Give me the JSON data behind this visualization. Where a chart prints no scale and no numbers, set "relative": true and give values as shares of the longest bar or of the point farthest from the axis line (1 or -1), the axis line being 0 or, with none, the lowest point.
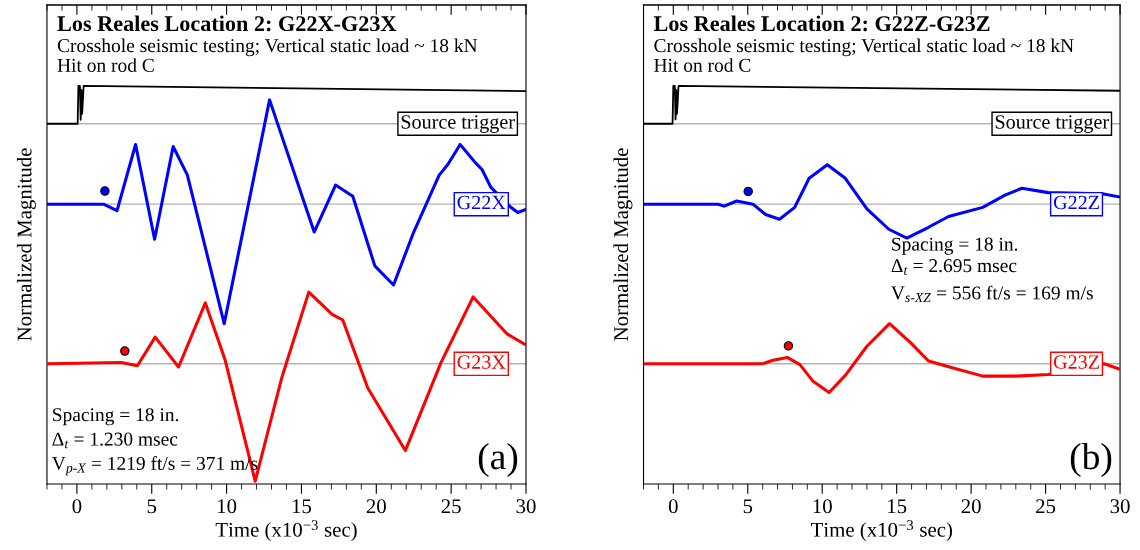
{
  "chart_data": [
    {
      "type": "line",
      "title": "Los Reales Location 2: G22X-G23X",
      "subtitle": "Crosshole seismic testing; Vertical static load ~ 18 kN\nHit on rod C",
      "xlabel": "Time (x10$^{−3}$ sec)",
      "ylabel": "Normalized Magnitude",
      "relative": true,
      "tick_labels": "x",
      "xlim": [
        -2,
        30
      ],
      "xticks": [
        {
          "value": -2,
          "label": null
        },
        {
          "value": -1,
          "label": null
        },
        0,
        {
          "value": 1,
          "label": null
        },
        {
          "value": 2,
          "label": null
        },
        {
          "value": 3,
          "label": null
        },
        {
          "value": 4,
          "label": null
        },
        5,
        {
          "value": 6,
          "label": null
        },
        {
          "value": 7,
          "label": null
        },
        {
          "value": 8,
          "label": null
        },
        {
          "value": 9,
          "label": null
        },
        10,
        {
          "value": 11,
          "label": null
        },
        {
          "value": 12,
          "label": null
        },
        {
          "value": 13,
          "label": null
        },
        {
          "value": 14,
          "label": null
        },
        15,
        {
          "value": 16,
          "label": null
        },
        {
          "value": 17,
          "label": null
        },
        {
          "value": 18,
          "label": null
        },
        {
          "value": 19,
          "label": null
        },
        20,
        {
          "value": 21,
          "label": null
        },
        {
          "value": 22,
          "label": null
        },
        {
          "value": 23,
          "label": null
        },
        {
          "value": 24,
          "label": null
        },
        25,
        {
          "value": 26,
          "label": null
        },
        {
          "value": 27,
          "label": null
        },
        {
          "value": 28,
          "label": null
        },
        {
          "value": 29,
          "label": null
        },
        30
      ],
      "ref_lines": [
        {
          "axis": "y",
          "value": 0.905,
          "color": "#b4b4b4"
        },
        {
          "axis": "y",
          "value": 0.703,
          "color": "#b4b4b4"
        },
        {
          "axis": "y",
          "value": 0.302,
          "color": "#b4b4b4"
        }
      ],
      "series": [
        {
          "name": "Source trigger",
          "color": "#000000",
          "x": [
            -2,
            0.05,
            0.1,
            0.2,
            0.25,
            0.3,
            0.35,
            0.45,
            30
          ],
          "values": [
            0.905,
            0.905,
            1.0,
            1.0,
            0.915,
            0.99,
            0.93,
            1.0,
            0.987
          ]
        },
        {
          "name": "G22X",
          "color": "#0000ff",
          "x": [
            -2,
            1.78,
            2.68,
            3.92,
            5.19,
            6.43,
            7.38,
            9.84,
            12.87,
            15.85,
            17.28,
            18.43,
            19.9,
            21.15,
            22.5,
            24.2,
            24.8,
            25.6,
            26.6,
            27.06,
            27.66,
            28.97,
            29.45,
            30
          ],
          "values": [
            0.703,
            0.703,
            0.687,
            0.853,
            0.615,
            0.848,
            0.776,
            0.403,
            0.965,
            0.633,
            0.751,
            0.723,
            0.548,
            0.5,
            0.633,
            0.776,
            0.804,
            0.853,
            0.808,
            0.79,
            0.745,
            0.696,
            0.682,
            0.69
          ]
        },
        {
          "name": "G23X",
          "color": "#ff0000",
          "x": [
            -2,
            2.97,
            4.04,
            5.23,
            6.79,
            8.58,
            9.89,
            11.91,
            13.7,
            15.49,
            17.05,
            17.76,
            19.43,
            21.94,
            24.32,
            26.47,
            28.74,
            30
          ],
          "values": [
            0.302,
            0.305,
            0.297,
            0.369,
            0.294,
            0.455,
            0.313,
            0.007,
            0.269,
            0.482,
            0.426,
            0.412,
            0.241,
            0.084,
            0.305,
            0.47,
            0.377,
            0.349
          ]
        },
        {
          "type": "scatter",
          "marker": "circle",
          "color": "#0000ff",
          "x": [
            1.87
          ],
          "values": [
            0.736
          ]
        },
        {
          "type": "scatter",
          "marker": "circle",
          "color": "#ff0000",
          "x": [
            3.2
          ],
          "values": [
            0.334
          ]
        }
      ],
      "annotations": [
        "Spacing = 18 in.",
        "Δ$_{t}$ = 1.230 msec",
        "V$_{p-X}$ = 1219 ft/s = 371 m/s",
        "(a)"
      ]
    },
    {
      "type": "line",
      "title": "Los Reales Location 2: G22Z-G23Z",
      "subtitle": "Crosshole seismic testing; Vertical static load ~ 18 kN\nHit on rod C",
      "xlabel": "Time (x10$^{−3}$ sec)",
      "ylabel": "Normalized Magnitude",
      "relative": true,
      "tick_labels": "x",
      "xlim": [
        -2,
        30
      ],
      "xticks": [
        {
          "value": -2,
          "label": null
        },
        {
          "value": -1,
          "label": null
        },
        0,
        {
          "value": 1,
          "label": null
        },
        {
          "value": 2,
          "label": null
        },
        {
          "value": 3,
          "label": null
        },
        {
          "value": 4,
          "label": null
        },
        5,
        {
          "value": 6,
          "label": null
        },
        {
          "value": 7,
          "label": null
        },
        {
          "value": 8,
          "label": null
        },
        {
          "value": 9,
          "label": null
        },
        10,
        {
          "value": 11,
          "label": null
        },
        {
          "value": 12,
          "label": null
        },
        {
          "value": 13,
          "label": null
        },
        {
          "value": 14,
          "label": null
        },
        15,
        {
          "value": 16,
          "label": null
        },
        {
          "value": 17,
          "label": null
        },
        {
          "value": 18,
          "label": null
        },
        {
          "value": 19,
          "label": null
        },
        20,
        {
          "value": 21,
          "label": null
        },
        {
          "value": 22,
          "label": null
        },
        {
          "value": 23,
          "label": null
        },
        {
          "value": 24,
          "label": null
        },
        25,
        {
          "value": 26,
          "label": null
        },
        {
          "value": 27,
          "label": null
        },
        {
          "value": 28,
          "label": null
        },
        {
          "value": 29,
          "label": null
        },
        30
      ],
      "ref_lines": [
        {
          "axis": "y",
          "value": 0.905,
          "color": "#b4b4b4"
        },
        {
          "axis": "y",
          "value": 0.703,
          "color": "#b4b4b4"
        },
        {
          "axis": "y",
          "value": 0.302,
          "color": "#b4b4b4"
        }
      ],
      "series": [
        {
          "name": "Source trigger",
          "color": "#000000",
          "x": [
            -2,
            -0.05,
            0.0,
            0.1,
            0.15,
            0.2,
            0.25,
            0.35,
            30
          ],
          "values": [
            0.905,
            0.905,
            1.0,
            1.0,
            0.916,
            0.99,
            0.93,
            1.0,
            0.988
          ]
        },
        {
          "name": "G22Z",
          "color": "#0000ff",
          "x": [
            -2,
            3.0,
            3.41,
            4.26,
            5.35,
            6.2,
            7.13,
            8.15,
            9.12,
            10.34,
            11.55,
            13.0,
            14.47,
            15.68,
            17.14,
            18.48,
            20.78,
            22.24,
            23.41,
            25.18,
            28.82,
            30
          ],
          "values": [
            0.703,
            0.703,
            0.698,
            0.711,
            0.703,
            0.677,
            0.665,
            0.695,
            0.768,
            0.802,
            0.768,
            0.691,
            0.64,
            0.618,
            0.645,
            0.672,
            0.695,
            0.725,
            0.743,
            0.732,
            0.729,
            0.721
          ]
        },
        {
          "name": "G23Z",
          "color": "#ff0000",
          "x": [
            -2,
            6.0,
            6.69,
            7.65,
            8.5,
            9.36,
            10.46,
            11.55,
            13.0,
            14.52,
            15.93,
            17.14,
            18.85,
            20.78,
            22.97,
            25.18,
            28.94,
            30
          ],
          "values": [
            0.302,
            0.302,
            0.311,
            0.318,
            0.3,
            0.259,
            0.23,
            0.273,
            0.346,
            0.403,
            0.355,
            0.309,
            0.291,
            0.271,
            0.271,
            0.275,
            0.302,
            0.288
          ]
        },
        {
          "type": "scatter",
          "marker": "circle",
          "color": "#0000ff",
          "x": [
            5.03
          ],
          "values": [
            0.735
          ]
        },
        {
          "type": "scatter",
          "marker": "circle",
          "color": "#ff0000",
          "x": [
            7.73
          ],
          "values": [
            0.347
          ]
        }
      ],
      "annotations": [
        "Spacing = 18 in.",
        "Δ$_{t}$ = 2.695 msec",
        "V$_{s-XZ}$ = 556 ft/s = 169 m/s",
        "(b)"
      ]
    }
  ]
}
